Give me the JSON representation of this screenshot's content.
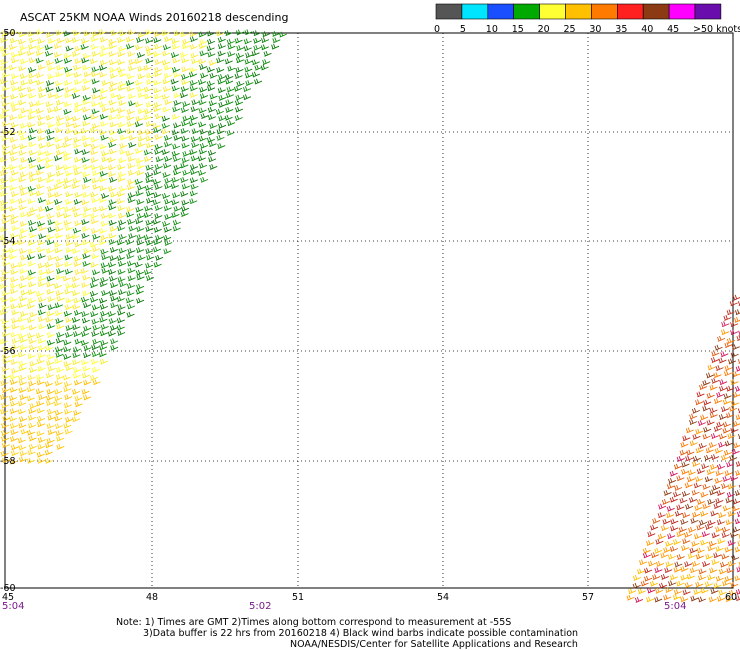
{
  "title": "ASCAT 25KM NOAA Winds 20160218 descending",
  "legend": {
    "colors": [
      "#555555",
      "#00e5ff",
      "#1a4fff",
      "#00aa00",
      "#ffff33",
      "#ffc000",
      "#ff7a00",
      "#ff2020",
      "#8b3a14",
      "#ff00ff",
      "#6a0dad"
    ],
    "labels": [
      "0",
      "5",
      "10",
      "15",
      "20",
      "25",
      "30",
      "35",
      "40",
      "45",
      ">50 knots"
    ]
  },
  "map": {
    "lat_labels": [
      "-50",
      "-52",
      "-54",
      "-56",
      "-58",
      "-60"
    ],
    "lon_labels": [
      "45",
      "48",
      "51",
      "54",
      "57",
      "60"
    ]
  },
  "swath_times": [
    "5:04",
    "5:02",
    "5:04"
  ],
  "notes": [
    "Note: 1) Times are GMT 2)Times along bottom correspond to measurement at -55S",
    "3)Data buffer is 22 hrs from 20160218 4) Black wind barbs indicate possible contamination",
    "NOAA/NESDIS/Center for Satellite Applications and Research"
  ]
}
